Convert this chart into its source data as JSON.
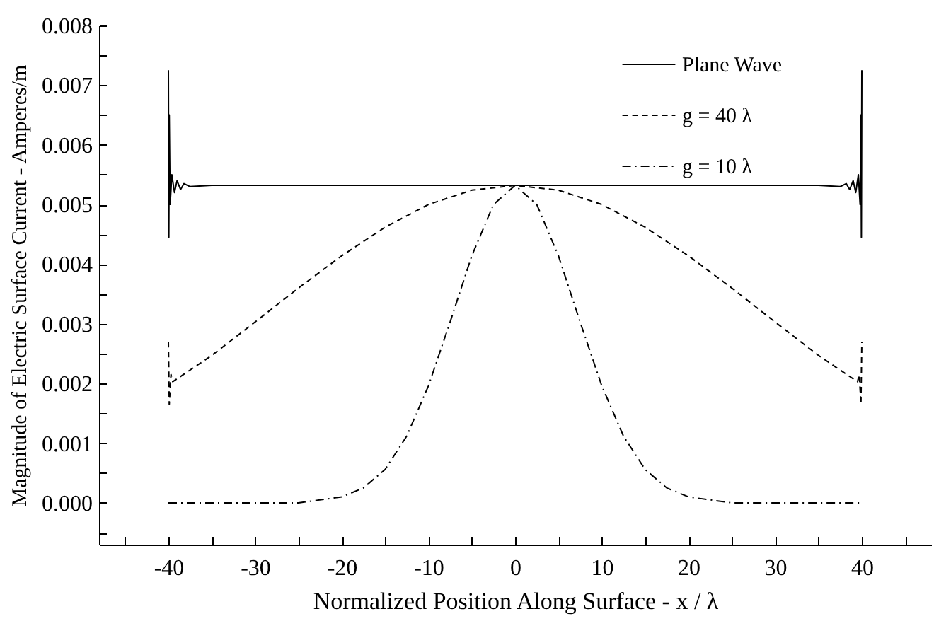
{
  "chart_data": {
    "type": "line",
    "xlabel": "Normalized Position Along Surface -  x / λ",
    "ylabel": "Magnitude of Electric Surface Current - Amperes/m",
    "xlim": [
      -48,
      48
    ],
    "ylim": [
      -0.0007,
      0.008
    ],
    "xticks": [
      {
        "value": -45,
        "label": null
      },
      -40,
      {
        "value": -35,
        "label": null
      },
      -30,
      {
        "value": -25,
        "label": null
      },
      -20,
      {
        "value": -15,
        "label": null
      },
      -10,
      {
        "value": -5,
        "label": null
      },
      0,
      {
        "value": 5,
        "label": null
      },
      10,
      {
        "value": 15,
        "label": null
      },
      20,
      {
        "value": 25,
        "label": null
      },
      30,
      {
        "value": 35,
        "label": null
      },
      40,
      {
        "value": 45,
        "label": null
      }
    ],
    "yticks": [
      {
        "value": -0.0005,
        "label": null
      },
      {
        "value": 0,
        "label": "0.000"
      },
      {
        "value": 0.0005,
        "label": null
      },
      {
        "value": 0.001,
        "label": "0.001"
      },
      {
        "value": 0.0015,
        "label": null
      },
      {
        "value": 0.002,
        "label": "0.002"
      },
      {
        "value": 0.0025,
        "label": null
      },
      {
        "value": 0.003,
        "label": "0.003"
      },
      {
        "value": 0.0035,
        "label": null
      },
      {
        "value": 0.004,
        "label": "0.004"
      },
      {
        "value": 0.0045,
        "label": null
      },
      {
        "value": 0.005,
        "label": "0.005"
      },
      {
        "value": 0.0055,
        "label": null
      },
      {
        "value": 0.006,
        "label": "0.006"
      },
      {
        "value": 0.0065,
        "label": null
      },
      {
        "value": 0.007,
        "label": "0.007"
      },
      {
        "value": 0.0075,
        "label": null
      },
      {
        "value": 0.008,
        "label": "0.008"
      }
    ],
    "grid": false,
    "legend": "top right",
    "marker": "none",
    "series": [
      {
        "name": "Plane Wave",
        "color": "#000000",
        "line_style": "solid",
        "x": [
          -40,
          -39.95,
          -39.9,
          -39.8,
          -39.6,
          -39.3,
          -39,
          -38.6,
          -38.2,
          -37.5,
          -35,
          35,
          37.5,
          38.2,
          38.6,
          39,
          39.3,
          39.6,
          39.8,
          39.9,
          39.95,
          40
        ],
        "values": [
          0.00725,
          0.00445,
          0.0065,
          0.005,
          0.0055,
          0.0052,
          0.0054,
          0.00525,
          0.00535,
          0.0053,
          0.00532,
          0.00532,
          0.0053,
          0.00535,
          0.00525,
          0.0054,
          0.0052,
          0.0055,
          0.005,
          0.0065,
          0.00445,
          0.00725
        ]
      },
      {
        "name": "g = 40 λ",
        "color": "#000000",
        "line_style": "dashed",
        "x": [
          -40,
          -39.9,
          -39.8,
          -39.7,
          -39.5,
          -35,
          -30,
          -25,
          -20,
          -15,
          -10,
          -5,
          0,
          5,
          10,
          15,
          20,
          25,
          30,
          35,
          39.5,
          39.7,
          39.8,
          39.9,
          40
        ],
        "values": [
          0.0027,
          0.00165,
          0.0019,
          0.00215,
          0.00203,
          0.00247,
          0.00303,
          0.0036,
          0.00414,
          0.00462,
          0.005,
          0.00524,
          0.00532,
          0.00524,
          0.005,
          0.00462,
          0.00414,
          0.0036,
          0.00303,
          0.00247,
          0.00203,
          0.00215,
          0.0019,
          0.00165,
          0.0027
        ]
      },
      {
        "name": "g = 10 λ",
        "color": "#000000",
        "line_style": "dashdot",
        "x": [
          -40,
          -30,
          -25,
          -20,
          -17.5,
          -15,
          -12.5,
          -10,
          -7.5,
          -5,
          -2.5,
          0,
          2.5,
          5,
          7.5,
          10,
          12.5,
          15,
          17.5,
          20,
          25,
          30,
          40
        ],
        "values": [
          0,
          0,
          0,
          0.0001,
          0.00025,
          0.00056,
          0.00112,
          0.00196,
          0.00303,
          0.00414,
          0.005,
          0.00532,
          0.005,
          0.00414,
          0.00303,
          0.00196,
          0.00112,
          0.00056,
          0.00025,
          0.0001,
          0,
          0,
          0
        ]
      }
    ]
  }
}
